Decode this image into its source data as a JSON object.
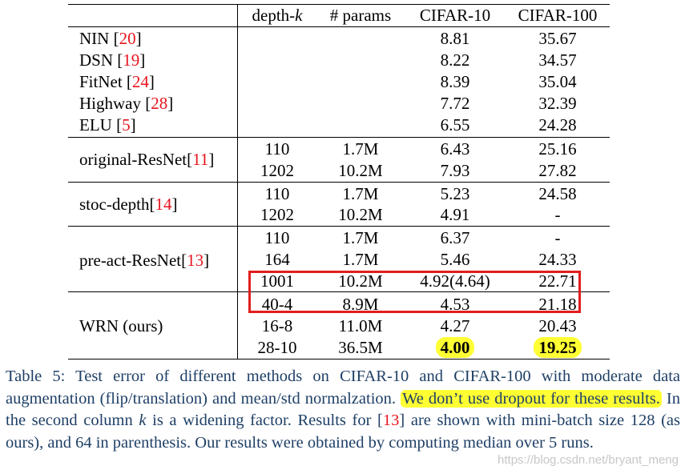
{
  "table": {
    "headers": [
      "",
      "depth-k",
      "# params",
      "CIFAR-10",
      "CIFAR-100"
    ],
    "groups": [
      {
        "rows": [
          {
            "method": "NIN",
            "ref": "20",
            "depth": "",
            "params": "",
            "c10": "8.81",
            "c100": "35.67"
          },
          {
            "method": "DSN",
            "ref": "19",
            "depth": "",
            "params": "",
            "c10": "8.22",
            "c100": "34.57"
          },
          {
            "method": "FitNet",
            "ref": "24",
            "depth": "",
            "params": "",
            "c10": "8.39",
            "c100": "35.04"
          },
          {
            "method": "Highway",
            "ref": "28",
            "depth": "",
            "params": "",
            "c10": "7.72",
            "c100": "32.39"
          },
          {
            "method": "ELU",
            "ref": "5",
            "depth": "",
            "params": "",
            "c10": "6.55",
            "c100": "24.28"
          }
        ]
      },
      {
        "method": "original-ResNet",
        "ref": "11",
        "rows": [
          {
            "depth": "110",
            "params": "1.7M",
            "c10": "6.43",
            "c100": "25.16"
          },
          {
            "depth": "1202",
            "params": "10.2M",
            "c10": "7.93",
            "c100": "27.82"
          }
        ]
      },
      {
        "method": "stoc-depth",
        "ref": "14",
        "rows": [
          {
            "depth": "110",
            "params": "1.7M",
            "c10": "5.23",
            "c100": "24.58"
          },
          {
            "depth": "1202",
            "params": "10.2M",
            "c10": "4.91",
            "c100": "-"
          }
        ]
      },
      {
        "method": "pre-act-ResNet",
        "ref": "13",
        "rows": [
          {
            "depth": "110",
            "params": "1.7M",
            "c10": "6.37",
            "c100": "-"
          },
          {
            "depth": "164",
            "params": "1.7M",
            "c10": "5.46",
            "c100": "24.33"
          },
          {
            "depth": "1001",
            "params": "10.2M",
            "c10": "4.92(4.64)",
            "c100": "22.71"
          }
        ]
      },
      {
        "method": "WRN (ours)",
        "rows": [
          {
            "depth": "40-4",
            "params": "8.9M",
            "c10": "4.53",
            "c100": "21.18"
          },
          {
            "depth": "16-8",
            "params": "11.0M",
            "c10": "4.27",
            "c100": "20.43"
          },
          {
            "depth": "28-10",
            "params": "36.5M",
            "c10": "4.00",
            "c100": "19.25"
          }
        ]
      }
    ]
  },
  "caption": {
    "part1": "Table 5: Test error of different methods on CIFAR-10 and CIFAR-100 with moderate data augmentation (flip/translation) and mean/std normalzation. ",
    "highlight": "We don’t use dropout for these results.",
    "part2": " In the second column ",
    "k": "k",
    "part3": " is a widening factor. Results for [",
    "ref": "13",
    "part4": "] are shown with mini-batch size 128 (as ours), and 64 in parenthesis. Our results were obtained by computing median over 5 runs."
  },
  "watermark": "https://blog.csdn.net/bryant_meng",
  "colors": {
    "highlight": "#ffff33",
    "reference": "#e8141e",
    "caption_text": "#1e3f66",
    "box": "#e11d1d"
  }
}
